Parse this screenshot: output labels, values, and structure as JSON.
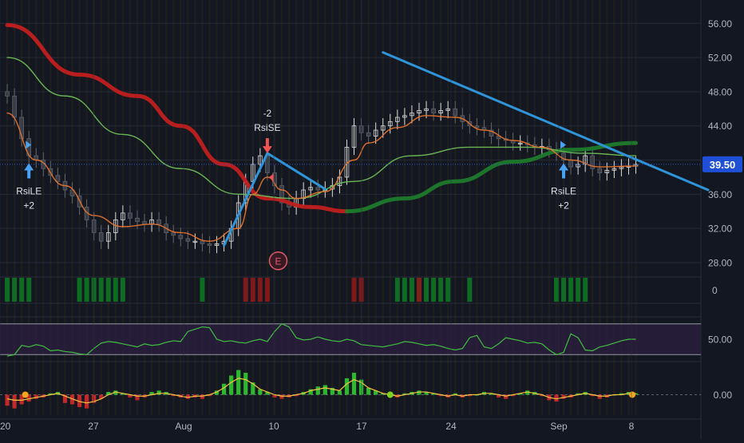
{
  "chart_data": {
    "type": "line",
    "instrument_style": "candlestick price chart with moving averages and indicator panes",
    "x_tick_labels": [
      "20",
      "27",
      "Aug",
      "10",
      "17",
      "24",
      "Sep",
      "8"
    ],
    "price_axis": {
      "ticks": [
        "56.00",
        "52.00",
        "48.00",
        "44.00",
        "40.00",
        "36.00",
        "32.00",
        "28.00"
      ],
      "range": [
        26.5,
        57.8
      ],
      "current_price_label": "39.50",
      "current_price": 39.5
    },
    "price_series": {
      "name": "",
      "x": [
        0,
        1,
        2,
        3,
        4,
        5,
        6,
        7,
        8,
        9,
        10,
        11,
        12,
        13,
        14,
        15,
        16,
        17,
        18,
        19,
        20,
        21,
        22,
        23,
        24,
        25,
        26,
        27,
        28,
        29,
        30,
        31,
        32,
        33,
        34,
        35,
        36,
        37,
        38,
        39,
        40,
        41,
        42,
        43,
        44,
        45,
        46,
        47,
        48,
        49,
        50,
        51,
        52,
        53,
        54,
        55,
        56,
        57,
        58,
        59,
        60,
        61,
        62,
        63,
        64,
        65,
        66,
        67,
        68,
        69,
        70,
        71,
        72,
        73,
        74,
        75,
        76,
        77,
        78,
        79,
        80,
        81,
        82,
        83,
        84,
        85,
        86,
        87
      ],
      "close": [
        47.5,
        45.0,
        42.5,
        40.5,
        40.0,
        39.0,
        38.2,
        37.5,
        36.5,
        35.8,
        34.5,
        33.0,
        31.5,
        30.5,
        31.5,
        33.0,
        33.8,
        33.2,
        32.8,
        32.5,
        33.0,
        32.5,
        31.5,
        31.2,
        30.8,
        30.5,
        30.5,
        30.2,
        30.0,
        30.2,
        30.5,
        32.0,
        35.0,
        37.5,
        39.5,
        40.5,
        38.5,
        37.0,
        35.0,
        34.5,
        35.5,
        36.5,
        36.8,
        36.5,
        36.6,
        37.0,
        38.0,
        41.5,
        44.0,
        43.2,
        42.8,
        43.5,
        44.0,
        44.5,
        45.0,
        45.2,
        45.5,
        45.8,
        46.0,
        45.5,
        45.8,
        46.0,
        45.2,
        44.5,
        44.0,
        43.8,
        43.5,
        42.8,
        42.5,
        42.3,
        42.0,
        42.0,
        41.8,
        41.5,
        41.6,
        41.2,
        40.8,
        40.0,
        39.2,
        39.5,
        40.5,
        39.0,
        38.5,
        38.8,
        39.0,
        39.2,
        39.3,
        39.5
      ],
      "x_min": -1,
      "x_max": 96
    },
    "moving_averages": [
      {
        "name": "",
        "color": "#c21f1f",
        "width": "thick",
        "x": [
          0,
          10,
          18,
          24,
          30,
          36,
          42,
          47
        ],
        "y": [
          55.8,
          50.0,
          47.5,
          44.0,
          39.5,
          35.5,
          34.5,
          34.0
        ]
      },
      {
        "name": "",
        "color": "#1d7a2c",
        "width": "thick",
        "x": [
          47,
          55,
          62,
          70,
          78,
          87
        ],
        "y": [
          34.0,
          35.5,
          37.5,
          39.8,
          41.2,
          42.0
        ]
      },
      {
        "name": "",
        "color": "#6fbf5a",
        "width": "thin",
        "x": [
          0,
          8,
          16,
          24,
          32,
          40,
          48,
          56,
          64,
          72,
          80,
          87
        ],
        "y": [
          52.0,
          47.5,
          43.0,
          39.0,
          36.0,
          35.5,
          37.5,
          40.5,
          41.5,
          41.5,
          40.8,
          40.5
        ]
      },
      {
        "name": "",
        "color": "#e8732c",
        "width": "thin",
        "x": [
          0,
          4,
          8,
          12,
          16,
          20,
          24,
          28,
          32,
          34,
          36,
          38,
          40,
          44,
          48,
          50,
          54,
          58,
          62,
          66,
          70,
          74,
          78,
          82,
          87
        ],
        "y": [
          45.5,
          40.0,
          37.0,
          33.5,
          32.2,
          32.5,
          31.5,
          30.5,
          32.0,
          36.0,
          38.0,
          36.5,
          35.5,
          36.3,
          40.0,
          42.0,
          43.8,
          45.2,
          45.0,
          43.5,
          42.3,
          41.5,
          40.0,
          39.2,
          39.3
        ]
      }
    ],
    "trendlines": [
      {
        "color": "#2f95d8",
        "x": [
          52,
          97
        ],
        "y": [
          52.6,
          36.5
        ]
      },
      {
        "color": "#2f95d8",
        "x": [
          30,
          36,
          44
        ],
        "y": [
          30.0,
          40.8,
          36.6
        ]
      }
    ],
    "annotations": [
      {
        "label": "RsiLE",
        "value_label": "+2",
        "direction": "long",
        "x": 3,
        "price": 40.0
      },
      {
        "label": "RsiSE",
        "value_label": "-2",
        "direction": "short",
        "x": 36,
        "price": 40.6
      },
      {
        "label": "RsiLE",
        "value_label": "+2",
        "direction": "long",
        "x": 77,
        "price": 40.0
      }
    ],
    "event_marker": {
      "label": "E",
      "x": 37.5,
      "price": 28.2
    },
    "signal_pane": {
      "axis_label": "0",
      "green_bar_x": [
        0,
        1,
        2,
        3,
        10,
        11,
        12,
        13,
        14,
        15,
        16,
        27,
        54,
        55,
        56,
        57,
        58,
        59,
        60,
        61,
        64,
        76,
        77,
        78,
        79,
        80
      ],
      "red_bar_x": [
        33,
        34,
        35,
        36,
        48,
        49,
        57
      ]
    },
    "rsi_pane": {
      "axis_label": "50.00",
      "y_range": [
        22,
        78
      ],
      "band": [
        30,
        70
      ],
      "values": [
        28,
        30,
        42,
        40,
        43,
        41,
        35,
        36,
        34,
        33,
        31,
        30,
        38,
        45,
        47,
        46,
        44,
        42,
        40,
        44,
        42,
        43,
        46,
        48,
        47,
        60,
        63,
        66,
        65,
        50,
        47,
        48,
        46,
        45,
        48,
        50,
        47,
        60,
        70,
        66,
        52,
        49,
        50,
        53,
        50,
        48,
        47,
        50,
        48,
        43,
        42,
        41,
        40,
        42,
        44,
        47,
        46,
        44,
        42,
        43,
        41,
        38,
        36,
        38,
        52,
        55,
        40,
        38,
        44,
        52,
        50,
        48,
        45,
        46,
        44,
        36,
        30,
        33,
        57,
        52,
        36,
        35,
        40,
        42,
        45,
        48,
        50,
        50
      ]
    },
    "oscillator_pane": {
      "axis_label": "0.00",
      "y_range": [
        -1.6,
        2.3
      ],
      "histogram": [
        -0.8,
        -1.0,
        -0.7,
        -0.5,
        -0.3,
        -0.2,
        0.1,
        0.2,
        -0.6,
        -0.7,
        -0.9,
        -1.0,
        -0.6,
        -0.3,
        0.2,
        0.3,
        0.1,
        -0.2,
        -0.4,
        -0.2,
        0.2,
        0.3,
        0.2,
        -0.1,
        -0.2,
        -0.3,
        -0.2,
        -0.3,
        -0.1,
        0.3,
        0.8,
        1.4,
        1.8,
        1.6,
        0.9,
        0.4,
        0.2,
        -0.2,
        -0.3,
        -0.2,
        -0.1,
        0.2,
        0.4,
        0.6,
        0.7,
        0.5,
        0.3,
        1.2,
        1.6,
        1.1,
        0.5,
        0.3,
        0.1,
        -0.1,
        -0.2,
        0.1,
        0.2,
        0.3,
        0.2,
        0.1,
        -0.1,
        -0.2,
        0.1,
        -0.2,
        -0.1,
        0.0,
        0.2,
        0.1,
        -0.2,
        -0.3,
        -0.1,
        0.1,
        0.3,
        0.2,
        -0.1,
        -0.4,
        -0.5,
        -0.3,
        -0.2,
        0.1,
        0.2,
        -0.1,
        -0.3,
        -0.2,
        0.0,
        0.1,
        0.2,
        0.1
      ],
      "signal_line": [
        -0.3,
        -0.4,
        -0.4,
        -0.3,
        -0.2,
        -0.1,
        0.0,
        0.1,
        -0.1,
        -0.3,
        -0.5,
        -0.6,
        -0.5,
        -0.3,
        0.0,
        0.2,
        0.1,
        0.0,
        -0.1,
        -0.1,
        0.0,
        0.1,
        0.1,
        0.0,
        -0.1,
        -0.2,
        -0.1,
        -0.1,
        0.0,
        0.2,
        0.5,
        0.9,
        1.2,
        1.1,
        0.8,
        0.4,
        0.2,
        0.0,
        -0.1,
        -0.1,
        0.0,
        0.1,
        0.3,
        0.4,
        0.5,
        0.4,
        0.3,
        0.8,
        1.1,
        0.9,
        0.5,
        0.3,
        0.1,
        0.0,
        -0.1,
        0.0,
        0.1,
        0.2,
        0.2,
        0.1,
        0.0,
        -0.1,
        0.0,
        -0.1,
        0.0,
        0.0,
        0.1,
        0.1,
        0.0,
        -0.1,
        0.0,
        0.1,
        0.2,
        0.1,
        0.0,
        -0.2,
        -0.3,
        -0.2,
        -0.1,
        0.0,
        0.1,
        0.0,
        -0.1,
        -0.1,
        0.0,
        0.0,
        0.1,
        0.1
      ],
      "dots": [
        {
          "x": 2.5,
          "color": "#f5a623"
        },
        {
          "x": 53,
          "color": "#7ed321"
        },
        {
          "x": 86.5,
          "color": "#f5a623"
        }
      ]
    },
    "colors": {
      "background": "#131722",
      "price_label_bg": "#1e4fd6",
      "price_line": "#2f54c9",
      "trendline": "#2f95d8",
      "bull_candle": "#d9d9d9",
      "rsi_line": "#3fbf3f",
      "rsi_band": "#2a1e3e",
      "hist_pos": "#31c931",
      "hist_neg": "#d42a2a",
      "signal_line": "#f5c542"
    },
    "grid": true
  }
}
